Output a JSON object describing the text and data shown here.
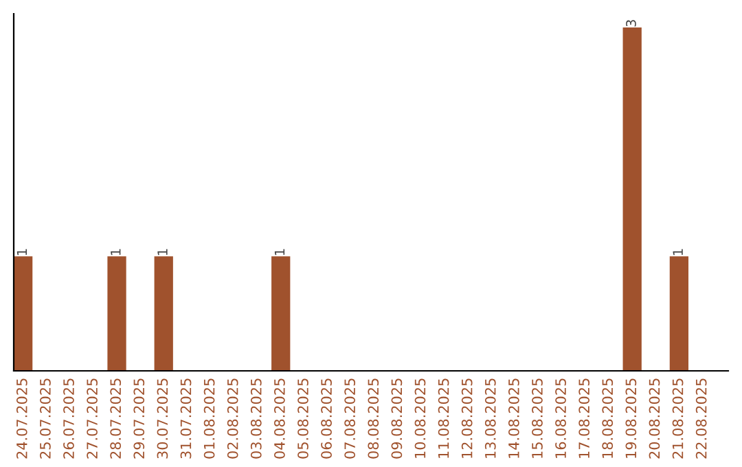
{
  "chart_data": {
    "type": "bar",
    "categories": [
      "24.07.2025",
      "25.07.2025",
      "26.07.2025",
      "27.07.2025",
      "28.07.2025",
      "29.07.2025",
      "30.07.2025",
      "31.07.2025",
      "01.08.2025",
      "02.08.2025",
      "03.08.2025",
      "04.08.2025",
      "05.08.2025",
      "06.08.2025",
      "07.08.2025",
      "08.08.2025",
      "09.08.2025",
      "10.08.2025",
      "11.08.2025",
      "12.08.2025",
      "13.08.2025",
      "14.08.2025",
      "15.08.2025",
      "16.08.2025",
      "17.08.2025",
      "18.08.2025",
      "19.08.2025",
      "20.08.2025",
      "21.08.2025",
      "22.08.2025"
    ],
    "values": [
      1,
      null,
      null,
      null,
      1,
      null,
      1,
      null,
      null,
      null,
      null,
      1,
      null,
      null,
      null,
      null,
      null,
      null,
      null,
      null,
      null,
      null,
      null,
      null,
      null,
      null,
      3,
      null,
      1,
      null
    ],
    "color": "#a0522d",
    "data_labels": true,
    "tick_labels": "x",
    "grid": false,
    "legend": false
  }
}
